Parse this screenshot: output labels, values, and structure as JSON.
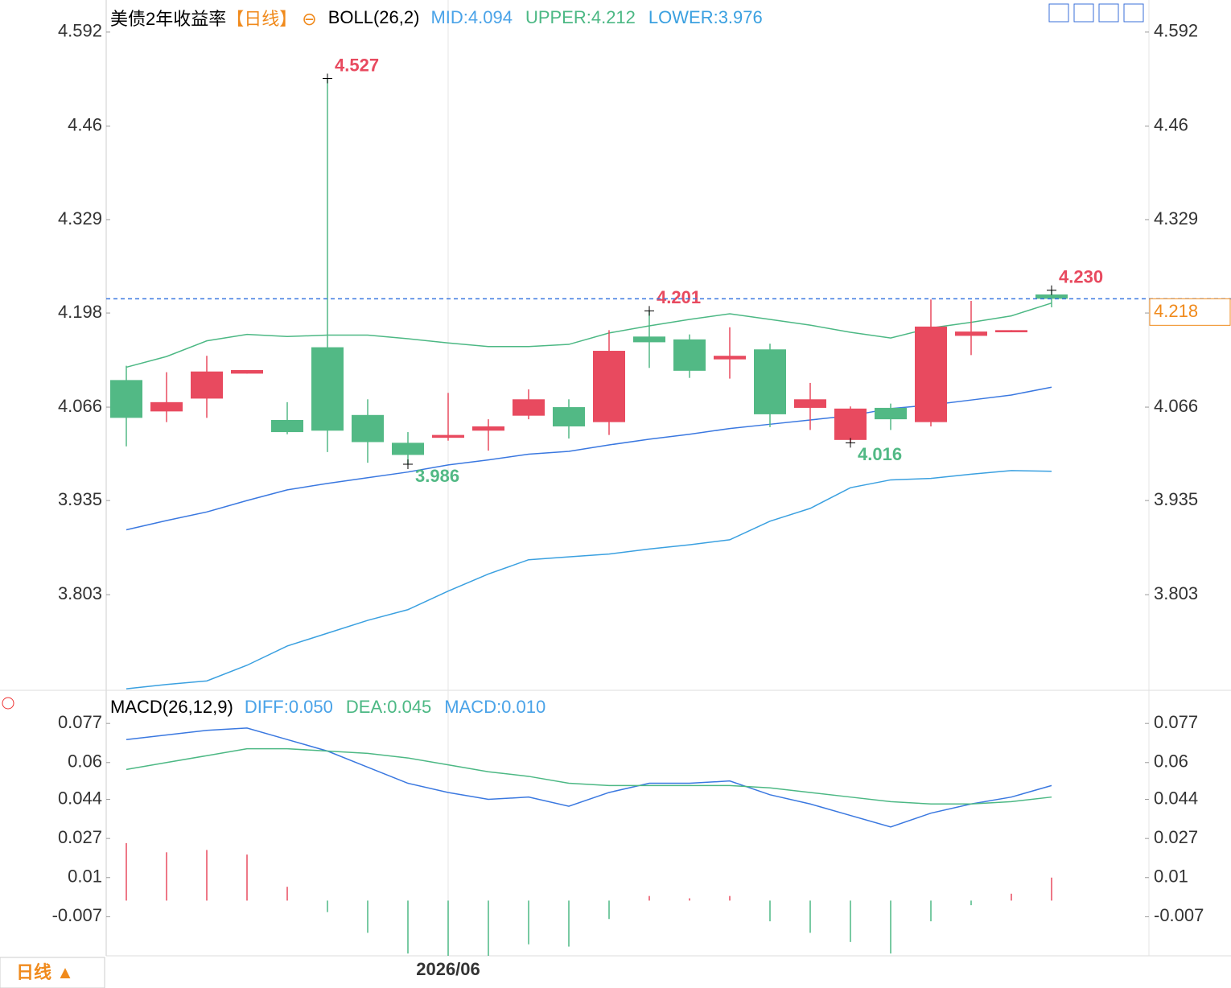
{
  "chart_data": [
    {
      "type": "candlestick",
      "title": "美债2年收益率",
      "period": "【日线】",
      "indicator": "BOLL(26,2)",
      "up_color": "#e84a5f",
      "down_color": "#52b985",
      "categories": [
        null,
        null,
        null,
        null,
        null,
        null,
        null,
        null,
        "2026/06",
        null,
        null,
        null,
        null,
        null,
        null,
        null,
        null,
        null,
        null,
        null,
        null,
        null,
        null,
        null
      ],
      "candles": [
        {
          "open": 4.104,
          "high": 4.124,
          "low": 4.011,
          "close": 4.051
        },
        {
          "open": 4.06,
          "high": 4.115,
          "low": 4.045,
          "close": 4.073
        },
        {
          "open": 4.078,
          "high": 4.138,
          "low": 4.051,
          "close": 4.116
        },
        {
          "open": 4.113,
          "high": 4.118,
          "low": 4.113,
          "close": 4.118
        },
        {
          "open": 4.048,
          "high": 4.073,
          "low": 4.028,
          "close": 4.031
        },
        {
          "open": 4.15,
          "high": 4.527,
          "low": 4.003,
          "close": 4.033,
          "high_label": "4.527"
        },
        {
          "open": 4.055,
          "high": 4.077,
          "low": 3.988,
          "close": 4.017
        },
        {
          "open": 4.016,
          "high": 4.031,
          "low": 3.986,
          "close": 3.999,
          "low_label": "3.986"
        },
        {
          "open": 4.023,
          "high": 4.086,
          "low": 4.019,
          "close": 4.027
        },
        {
          "open": 4.033,
          "high": 4.049,
          "low": 4.005,
          "close": 4.039
        },
        {
          "open": 4.054,
          "high": 4.091,
          "low": 4.049,
          "close": 4.077
        },
        {
          "open": 4.066,
          "high": 4.077,
          "low": 4.022,
          "close": 4.039
        },
        {
          "open": 4.045,
          "high": 4.174,
          "low": 4.027,
          "close": 4.145
        },
        {
          "open": 4.165,
          "high": 4.201,
          "low": 4.121,
          "close": 4.157,
          "high_label": "4.201"
        },
        {
          "open": 4.161,
          "high": 4.168,
          "low": 4.107,
          "close": 4.117
        },
        {
          "open": 4.133,
          "high": 4.178,
          "low": 4.106,
          "close": 4.138
        },
        {
          "open": 4.147,
          "high": 4.155,
          "low": 4.038,
          "close": 4.056
        },
        {
          "open": 4.065,
          "high": 4.1,
          "low": 4.034,
          "close": 4.077
        },
        {
          "open": 4.02,
          "high": 4.067,
          "low": 4.016,
          "close": 4.064,
          "low_label": "4.016"
        },
        {
          "open": 4.065,
          "high": 4.071,
          "low": 4.034,
          "close": 4.049
        },
        {
          "open": 4.045,
          "high": 4.217,
          "low": 4.039,
          "close": 4.179
        },
        {
          "open": 4.166,
          "high": 4.215,
          "low": 4.139,
          "close": 4.172
        },
        {
          "open": 4.171,
          "high": 4.174,
          "low": 4.171,
          "close": 4.174
        },
        {
          "open": 4.224,
          "high": 4.23,
          "low": 4.206,
          "close": 4.218,
          "high_label": "4.230"
        }
      ],
      "series": [
        {
          "name": "MID:4.094",
          "color": "#3a78e0",
          "legend_color": "#4aa3e8",
          "values": [
            3.894,
            3.907,
            3.919,
            3.935,
            3.95,
            3.959,
            3.967,
            3.975,
            3.985,
            3.992,
            4.0,
            4.004,
            4.013,
            4.021,
            4.028,
            4.036,
            4.042,
            4.048,
            4.054,
            4.064,
            4.069,
            4.076,
            4.083,
            4.094
          ]
        },
        {
          "name": "UPPER:4.212",
          "color": "#4cb884",
          "legend_color": "#4cb884",
          "values": [
            4.122,
            4.137,
            4.159,
            4.168,
            4.165,
            4.167,
            4.167,
            4.162,
            4.156,
            4.151,
            4.151,
            4.154,
            4.17,
            4.18,
            4.189,
            4.197,
            4.189,
            4.181,
            4.171,
            4.163,
            4.177,
            4.185,
            4.194,
            4.212
          ]
        },
        {
          "name": "LOWER:3.976",
          "color": "#3aa0e0",
          "legend_color": "#3aa0e0",
          "values": [
            3.671,
            3.677,
            3.682,
            3.704,
            3.731,
            3.749,
            3.767,
            3.782,
            3.808,
            3.832,
            3.852,
            3.856,
            3.86,
            3.867,
            3.873,
            3.88,
            3.906,
            3.924,
            3.953,
            3.964,
            3.966,
            3.972,
            3.977,
            3.976
          ]
        }
      ],
      "last_price": 4.218,
      "ylim": [
        3.67,
        4.637
      ],
      "yticks": [
        4.592,
        4.46,
        4.329,
        4.198,
        4.066,
        3.935,
        3.803
      ],
      "period_label": "日线 ▲"
    },
    {
      "type": "macd",
      "title": "MACD(26,12,9)",
      "series": [
        {
          "name": "DIFF:0.050",
          "color": "#3a78e0",
          "legend_color": "#4aa3e8",
          "values": [
            0.07,
            0.072,
            0.074,
            0.075,
            0.07,
            0.065,
            0.058,
            0.051,
            0.047,
            0.044,
            0.045,
            0.041,
            0.047,
            0.051,
            0.051,
            0.052,
            0.046,
            0.042,
            0.037,
            0.032,
            0.038,
            0.042,
            0.045,
            0.05
          ]
        },
        {
          "name": "DEA:0.045",
          "color": "#4cb884",
          "legend_color": "#4cb884",
          "values": [
            0.057,
            0.06,
            0.063,
            0.066,
            0.066,
            0.065,
            0.064,
            0.062,
            0.059,
            0.056,
            0.054,
            0.051,
            0.05,
            0.05,
            0.05,
            0.05,
            0.049,
            0.047,
            0.045,
            0.043,
            0.042,
            0.042,
            0.043,
            0.045
          ]
        },
        {
          "name": "MACD:0.010",
          "type": "bar",
          "legend_color": "#4aa3e8",
          "up_color": "#e84a5f",
          "down_color": "#4cb884",
          "values": [
            0.025,
            0.021,
            0.022,
            0.02,
            0.006,
            -0.005,
            -0.014,
            -0.023,
            -0.024,
            -0.024,
            -0.019,
            -0.02,
            -0.008,
            0.002,
            0.001,
            0.002,
            -0.009,
            -0.014,
            -0.018,
            -0.023,
            -0.009,
            -0.002,
            0.003,
            0.01
          ]
        }
      ],
      "ylim": [
        -0.024,
        0.09
      ],
      "yticks": [
        0.077,
        0.06,
        0.044,
        0.027,
        0.01,
        -0.007
      ]
    }
  ]
}
